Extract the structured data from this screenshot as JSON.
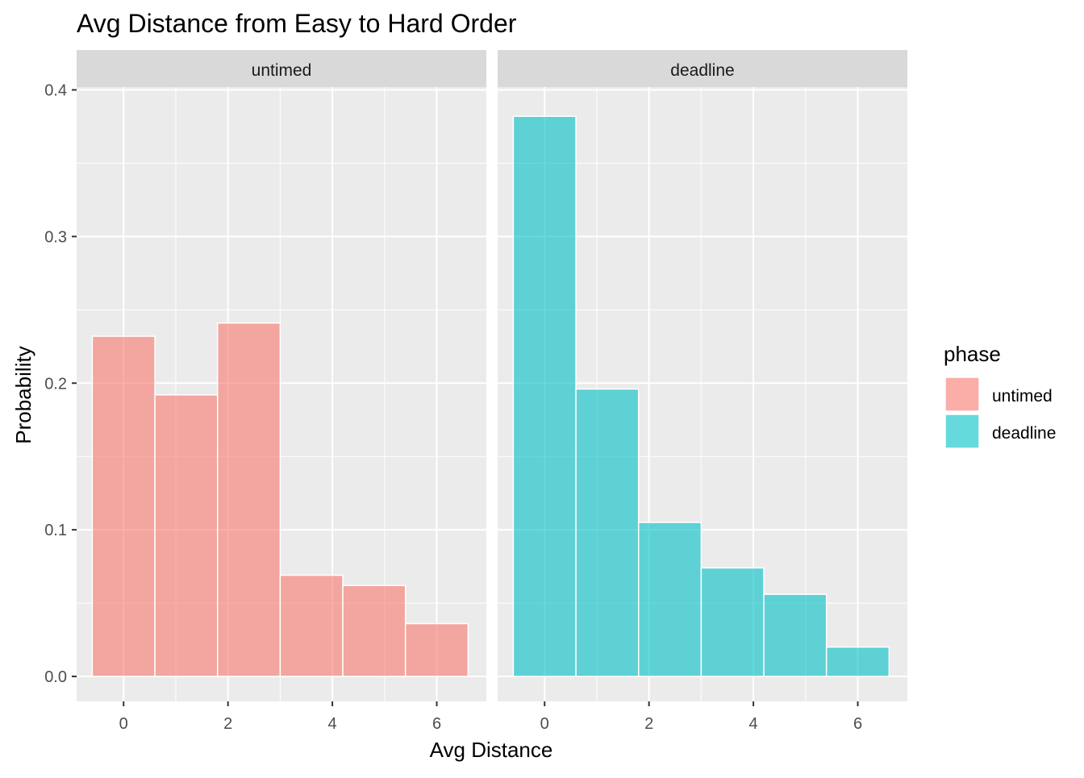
{
  "chart_data": {
    "type": "bar",
    "title": "Avg Distance from Easy to Hard Order",
    "xlabel": "Avg Distance",
    "ylabel": "Probability",
    "ylim": [
      0,
      0.4
    ],
    "xlim": [
      -0.9,
      6.95
    ],
    "y_ticks": [
      "0.0",
      "0.1",
      "0.2",
      "0.3",
      "0.4"
    ],
    "x_ticks": [
      "0",
      "2",
      "4",
      "6"
    ],
    "grid": true,
    "legend_position": "right",
    "legend": {
      "title": "phase",
      "items": [
        {
          "label": "untimed",
          "color": "#F8766D"
        },
        {
          "label": "deadline",
          "color": "#00BFC4"
        }
      ]
    },
    "bin_width": 1.2,
    "facets": [
      {
        "label": "untimed",
        "color": "#F8766D",
        "bins": [
          {
            "x": 0.0,
            "value": 0.232
          },
          {
            "x": 1.2,
            "value": 0.192
          },
          {
            "x": 2.4,
            "value": 0.241
          },
          {
            "x": 3.6,
            "value": 0.069
          },
          {
            "x": 4.8,
            "value": 0.062
          },
          {
            "x": 6.0,
            "value": 0.036
          }
        ]
      },
      {
        "label": "deadline",
        "color": "#00BFC4",
        "bins": [
          {
            "x": 0.0,
            "value": 0.382
          },
          {
            "x": 1.2,
            "value": 0.196
          },
          {
            "x": 2.4,
            "value": 0.105
          },
          {
            "x": 3.6,
            "value": 0.074
          },
          {
            "x": 4.8,
            "value": 0.056
          },
          {
            "x": 6.0,
            "value": 0.02
          }
        ]
      }
    ]
  }
}
